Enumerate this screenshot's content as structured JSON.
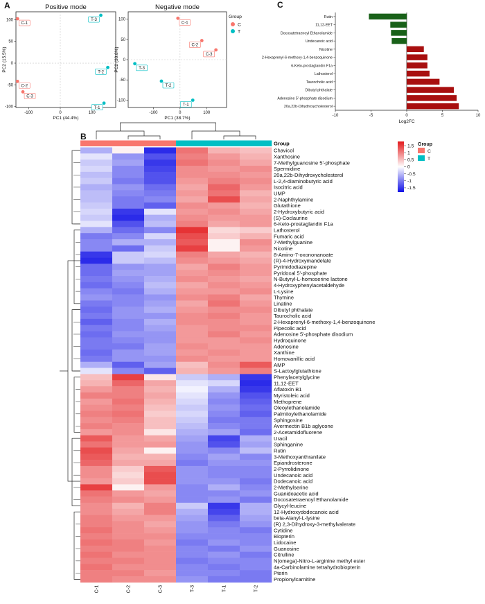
{
  "panels": {
    "a": "A",
    "b": "B",
    "c": "C"
  },
  "pca": [
    {
      "title": "Positive mode",
      "type": "scatter",
      "xlabel": "PC1 (44.4%)",
      "ylabel": "PC2 (15.5%)",
      "xlim": [
        -140,
        175
      ],
      "ylim": [
        -102,
        118
      ],
      "xticks": [
        -100,
        0,
        100
      ],
      "yticks": [
        -100,
        -50,
        0,
        50,
        100
      ],
      "points": [
        {
          "label": "C-1",
          "group": "C",
          "x": -135,
          "y": 102
        },
        {
          "label": "C-2",
          "group": "C",
          "x": -135,
          "y": -42
        },
        {
          "label": "C-3",
          "group": "C",
          "x": -118,
          "y": -66
        },
        {
          "label": "T-3",
          "group": "T",
          "x": 128,
          "y": 110
        },
        {
          "label": "T-2",
          "group": "T",
          "x": 150,
          "y": -10
        },
        {
          "label": "T-1",
          "group": "T",
          "x": 138,
          "y": -92
        }
      ]
    },
    {
      "title": "Negative mode",
      "type": "scatter",
      "xlabel": "PC1 (38.7%)",
      "ylabel": "PC2 (30.8%)",
      "xlim": [
        -195,
        175
      ],
      "ylim": [
        -118,
        118
      ],
      "xticks": [
        -100,
        0,
        100
      ],
      "yticks": [
        -100,
        -50,
        0,
        50,
        100
      ],
      "points": [
        {
          "label": "C-1",
          "group": "C",
          "x": -8,
          "y": 102
        },
        {
          "label": "C-2",
          "group": "C",
          "x": 82,
          "y": 47
        },
        {
          "label": "C-3",
          "group": "C",
          "x": 135,
          "y": 24
        },
        {
          "label": "T-3",
          "group": "T",
          "x": -170,
          "y": -10
        },
        {
          "label": "T-2",
          "group": "T",
          "x": -70,
          "y": -53
        },
        {
          "label": "T-1",
          "group": "T",
          "x": 48,
          "y": -100
        }
      ]
    }
  ],
  "legend": {
    "title": "Group",
    "items": [
      {
        "name": "C",
        "color": "#f8766d"
      },
      {
        "name": "T",
        "color": "#00bfc4"
      }
    ]
  },
  "bar_chart": {
    "type": "bar",
    "orientation": "horizontal",
    "xlabel": "Log2FC",
    "xlim": [
      -10,
      10
    ],
    "xticks": [
      -10,
      -5,
      0,
      5,
      10
    ],
    "categories": [
      "Rutin",
      "11,12-EET",
      "Docosatetraenoyl Ethanolamide",
      "Undecanoic acid",
      "Nicotine",
      "2-Hexaprenyl-6-methoxy-1,4-benzoquinone",
      "6-Keto-prostaglandin F1a",
      "Lathosterol",
      "Taurocholic acid",
      "Dibutyl phthalate",
      "Adenosine 5'-phosphate disodium",
      "20a,22b-Dihydroxycholesterol"
    ],
    "values": [
      -5.3,
      -2.3,
      -2.2,
      -2.1,
      2.4,
      2.9,
      2.9,
      3.2,
      4.6,
      6.6,
      7.0,
      7.3
    ],
    "colors": {
      "down": "#196119",
      "up": "#a80f0f"
    }
  },
  "heatmap": {
    "columns": [
      "C-1",
      "C-2",
      "C-3",
      "T-3",
      "T-1",
      "T-2"
    ],
    "column_groups": [
      "C",
      "C",
      "C",
      "T",
      "T",
      "T"
    ],
    "group_header": "Group",
    "colorbar": {
      "ticks": [
        "1.5",
        "1",
        "0.5",
        "0",
        "-0.5",
        "-1",
        "-1.5"
      ],
      "range": [
        -1.8,
        1.8
      ],
      "colors": {
        "low": "#1010e6",
        "mid": "#ffffff",
        "high": "#e31a1c"
      }
    },
    "rows": [
      {
        "name": "Chavicol",
        "values": [
          -0.6,
          0.1,
          -1.6,
          1.1,
          0.6,
          0.5
        ]
      },
      {
        "name": "Xanthosine",
        "values": [
          -0.2,
          -0.8,
          -1.3,
          1.0,
          0.8,
          0.6
        ]
      },
      {
        "name": "7-Methylguanosine 5'-phosphate",
        "values": [
          -0.4,
          -0.7,
          -1.5,
          1.1,
          0.9,
          0.7
        ]
      },
      {
        "name": "Spermidine",
        "values": [
          -0.3,
          -0.9,
          -1.4,
          0.9,
          0.8,
          0.9
        ]
      },
      {
        "name": "20a,22b-Dihydroxycholesterol",
        "values": [
          -0.5,
          -0.9,
          -1.3,
          0.9,
          0.9,
          0.8
        ]
      },
      {
        "name": "L-2,4-diaminobutyric acid",
        "values": [
          -0.4,
          -1.0,
          -1.3,
          0.8,
          1.0,
          0.9
        ]
      },
      {
        "name": "Isocitric acid",
        "values": [
          -0.6,
          -0.8,
          -1.1,
          0.7,
          1.2,
          0.8
        ]
      },
      {
        "name": "UMP",
        "values": [
          -0.5,
          -0.9,
          -1.0,
          0.8,
          1.1,
          0.6
        ]
      },
      {
        "name": "2-Naphthylamine",
        "values": [
          -0.5,
          -1.0,
          -0.9,
          0.7,
          1.4,
          0.7
        ]
      },
      {
        "name": "Glutathione",
        "values": [
          -0.4,
          -1.0,
          -1.2,
          0.9,
          0.8,
          0.6
        ]
      },
      {
        "name": "2-Hydroxybutyric acid",
        "values": [
          -0.3,
          -1.5,
          -0.2,
          0.8,
          0.9,
          0.7
        ]
      },
      {
        "name": "(S)-Coclaurine",
        "values": [
          -0.4,
          -1.6,
          -0.6,
          0.9,
          0.8,
          0.8
        ]
      },
      {
        "name": "6-Keto-prostaglandin F1a",
        "values": [
          -0.2,
          -1.3,
          -0.5,
          1.0,
          0.7,
          0.8
        ]
      },
      {
        "name": "Lathosterol",
        "values": [
          -0.6,
          -1.1,
          -0.9,
          1.6,
          0.3,
          0.4
        ]
      },
      {
        "name": "Fumaric acid",
        "values": [
          -1.0,
          -0.9,
          -0.3,
          1.4,
          0.4,
          0.6
        ]
      },
      {
        "name": "7-Methylguanine",
        "values": [
          -0.9,
          -0.6,
          -0.6,
          1.3,
          0.1,
          0.9
        ]
      },
      {
        "name": "Nicotine",
        "values": [
          -0.9,
          -1.1,
          -0.4,
          1.5,
          0.1,
          0.8
        ]
      },
      {
        "name": "8-Amino-7-oxononanoate",
        "values": [
          -1.5,
          -0.4,
          -0.3,
          1.0,
          0.7,
          0.6
        ]
      },
      {
        "name": "(R)-4-Hydroxymandelate",
        "values": [
          -1.6,
          -0.4,
          -0.5,
          0.9,
          0.8,
          0.7
        ]
      },
      {
        "name": "Pyrimidodiazepine",
        "values": [
          -1.1,
          -0.8,
          -0.7,
          0.7,
          1.0,
          0.8
        ]
      },
      {
        "name": "Pyridoxal 5'-phosphate",
        "values": [
          -1.1,
          -0.7,
          -0.7,
          0.8,
          0.9,
          0.8
        ]
      },
      {
        "name": "N-Butyryl-L-homoserine lactone",
        "values": [
          -1.0,
          -0.8,
          -0.6,
          0.9,
          0.8,
          0.7
        ]
      },
      {
        "name": "4-Hydroxyphenylacetaldehyde",
        "values": [
          -1.1,
          -0.9,
          -0.5,
          0.7,
          0.9,
          0.8
        ]
      },
      {
        "name": "L-Lysine",
        "values": [
          -0.9,
          -1.0,
          -0.6,
          0.8,
          0.8,
          0.9
        ]
      },
      {
        "name": "Thymine",
        "values": [
          -0.8,
          -0.9,
          -0.8,
          0.9,
          1.0,
          0.7
        ]
      },
      {
        "name": "Linatine",
        "values": [
          -1.0,
          -0.9,
          -0.7,
          0.7,
          1.1,
          0.8
        ]
      },
      {
        "name": "Dibutyl phthalate",
        "values": [
          -1.1,
          -0.8,
          -0.6,
          0.8,
          0.9,
          0.9
        ]
      },
      {
        "name": "Taurocholic acid",
        "values": [
          -1.0,
          -0.8,
          -0.8,
          0.9,
          1.0,
          0.8
        ]
      },
      {
        "name": "2-Hexaprenyl-6-methoxy-1,4-benzoquinone",
        "values": [
          -1.2,
          -0.9,
          -0.6,
          0.9,
          0.9,
          0.8
        ]
      },
      {
        "name": "Pipecolic acid",
        "values": [
          -1.0,
          -0.9,
          -0.7,
          0.8,
          0.9,
          0.9
        ]
      },
      {
        "name": "Adenosine 5'-phosphate disodium",
        "values": [
          -1.1,
          -0.8,
          -0.8,
          0.8,
          1.0,
          0.8
        ]
      },
      {
        "name": "Hydroquinone",
        "values": [
          -1.0,
          -0.9,
          -0.8,
          0.8,
          0.8,
          0.9
        ]
      },
      {
        "name": "Adenosine",
        "values": [
          -1.0,
          -1.0,
          -0.7,
          0.9,
          0.8,
          0.8
        ]
      },
      {
        "name": "Xanthine",
        "values": [
          -1.1,
          -0.8,
          -0.7,
          0.8,
          0.9,
          0.8
        ]
      },
      {
        "name": "Homovanillic acid",
        "values": [
          -1.0,
          -0.8,
          -0.8,
          0.9,
          0.8,
          0.8
        ]
      },
      {
        "name": "AMP",
        "values": [
          -0.6,
          -1.2,
          -0.7,
          0.5,
          0.9,
          1.3
        ]
      },
      {
        "name": "S-Lactoylglutathione",
        "values": [
          -0.2,
          -0.9,
          -1.2,
          0.6,
          0.8,
          1.0
        ]
      },
      {
        "name": "Phenylacetylglycine",
        "values": [
          0.5,
          1.5,
          0.2,
          -0.4,
          -0.6,
          -1.5
        ]
      },
      {
        "name": "11,12-EET",
        "values": [
          0.6,
          1.2,
          0.7,
          -0.2,
          -0.3,
          -1.6
        ]
      },
      {
        "name": "Aflatoxin B1",
        "values": [
          0.8,
          1.0,
          0.6,
          -0.1,
          -0.6,
          -1.5
        ]
      },
      {
        "name": "Myristoleic acid",
        "values": [
          1.0,
          1.0,
          0.7,
          -0.2,
          -0.8,
          -1.3
        ]
      },
      {
        "name": "Methoprene",
        "values": [
          0.8,
          1.1,
          0.6,
          -0.3,
          -0.9,
          -1.2
        ]
      },
      {
        "name": "Oleoylethanolamide",
        "values": [
          0.9,
          1.0,
          0.5,
          -0.4,
          -0.8,
          -1.1
        ]
      },
      {
        "name": "Palmitoylethanolamide",
        "values": [
          1.0,
          1.1,
          0.4,
          -0.3,
          -0.9,
          -1.2
        ]
      },
      {
        "name": "Sphingosine",
        "values": [
          0.9,
          1.0,
          0.5,
          -0.4,
          -1.0,
          -1.0
        ]
      },
      {
        "name": "Avermectin B1b aglycone",
        "values": [
          1.0,
          0.9,
          0.5,
          -0.5,
          -0.9,
          -1.0
        ]
      },
      {
        "name": "2-Acetamidofluorene",
        "values": [
          0.8,
          0.9,
          0.2,
          -0.6,
          -0.7,
          -1.1
        ]
      },
      {
        "name": "Uracil",
        "values": [
          1.3,
          0.8,
          0.7,
          -0.7,
          -1.4,
          -0.6
        ]
      },
      {
        "name": "Sphinganine",
        "values": [
          1.1,
          0.8,
          0.8,
          -0.8,
          -1.3,
          -0.7
        ]
      },
      {
        "name": "Rutin",
        "values": [
          1.4,
          0.7,
          0.1,
          -0.8,
          -0.9,
          -0.5
        ]
      },
      {
        "name": "3-Methoxyanthranilate",
        "values": [
          1.3,
          0.6,
          0.6,
          -0.9,
          -0.7,
          -0.9
        ]
      },
      {
        "name": "Epiandrosterone",
        "values": [
          1.2,
          0.7,
          0.7,
          -1.0,
          -0.8,
          -0.8
        ]
      },
      {
        "name": "2-Pyrrolidinone",
        "values": [
          0.9,
          0.4,
          1.3,
          -0.8,
          -0.9,
          -0.9
        ]
      },
      {
        "name": "Undecanoic acid",
        "values": [
          0.9,
          0.3,
          1.4,
          -0.8,
          -0.9,
          -0.9
        ]
      },
      {
        "name": "Dodecanoic acid",
        "values": [
          0.8,
          0.4,
          1.4,
          -0.8,
          -0.8,
          -1.0
        ]
      },
      {
        "name": "2-Methylserine",
        "values": [
          1.5,
          0.1,
          0.8,
          -0.9,
          -0.6,
          -0.9
        ]
      },
      {
        "name": "Guanidoacetic acid",
        "values": [
          1.1,
          0.8,
          0.7,
          -0.9,
          -0.9,
          -0.8
        ]
      },
      {
        "name": "Docosatetraenoyl Ethanolamide",
        "values": [
          1.0,
          0.9,
          0.8,
          -0.9,
          -0.8,
          -1.0
        ]
      },
      {
        "name": "Glycyl-leucine",
        "values": [
          0.9,
          0.6,
          1.0,
          -0.4,
          -1.5,
          -0.6
        ]
      },
      {
        "name": "12-Hydroxydodecanoic acid",
        "values": [
          0.9,
          0.7,
          1.0,
          -0.6,
          -1.4,
          -0.6
        ]
      },
      {
        "name": "beta-Alanyl-L-lysine",
        "values": [
          1.0,
          0.8,
          0.8,
          -0.7,
          -1.2,
          -0.7
        ]
      },
      {
        "name": "(R) 2,3-Dihydroxy-3-methylvalerate",
        "values": [
          1.0,
          0.9,
          0.7,
          -0.8,
          -1.0,
          -0.8
        ]
      },
      {
        "name": "Cytidine",
        "values": [
          1.1,
          0.9,
          0.8,
          -0.8,
          -0.9,
          -1.0
        ]
      },
      {
        "name": "Biopterin",
        "values": [
          1.0,
          0.9,
          0.9,
          -0.9,
          -0.9,
          -0.9
        ]
      },
      {
        "name": "Lidocaine",
        "values": [
          1.1,
          1.0,
          0.8,
          -1.0,
          -0.8,
          -0.9
        ]
      },
      {
        "name": "Guanosine",
        "values": [
          1.0,
          1.0,
          0.9,
          -0.9,
          -1.0,
          -0.8
        ]
      },
      {
        "name": "Citrulline",
        "values": [
          1.1,
          0.9,
          0.9,
          -0.9,
          -0.8,
          -1.0
        ]
      },
      {
        "name": "N(omega)-Nitro-L-arginine methyl ester",
        "values": [
          1.0,
          1.0,
          0.9,
          -1.0,
          -0.9,
          -0.9
        ]
      },
      {
        "name": "4a-Carbinolamine tetrahydrobiopterin",
        "values": [
          1.1,
          0.9,
          0.9,
          -0.9,
          -1.0,
          -0.9
        ]
      },
      {
        "name": "Pterin",
        "values": [
          1.0,
          1.0,
          0.8,
          -0.9,
          -0.9,
          -1.0
        ]
      },
      {
        "name": "Propionylcarnitine",
        "values": [
          1.0,
          0.9,
          0.9,
          -0.8,
          -1.0,
          -1.0
        ]
      }
    ]
  }
}
